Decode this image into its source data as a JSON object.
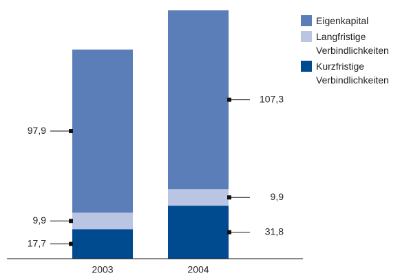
{
  "chart_data": {
    "type": "stacked_bar",
    "categories": [
      "2003",
      "2004"
    ],
    "series": [
      {
        "name": "Kurzfristige Verbindlichkeiten",
        "color": "#004a8f",
        "values": [
          17.7,
          31.8
        ],
        "value_labels": [
          "17,7",
          "31,8"
        ]
      },
      {
        "name": "Langfristige Verbindlichkeiten",
        "color": "#b9c5e2",
        "values": [
          9.9,
          9.9
        ],
        "value_labels": [
          "9,9",
          "9,9"
        ]
      },
      {
        "name": "Eigenkapital",
        "color": "#5b7db8",
        "values": [
          97.9,
          107.3
        ],
        "value_labels": [
          "97,9",
          "107,3"
        ]
      }
    ]
  }
}
